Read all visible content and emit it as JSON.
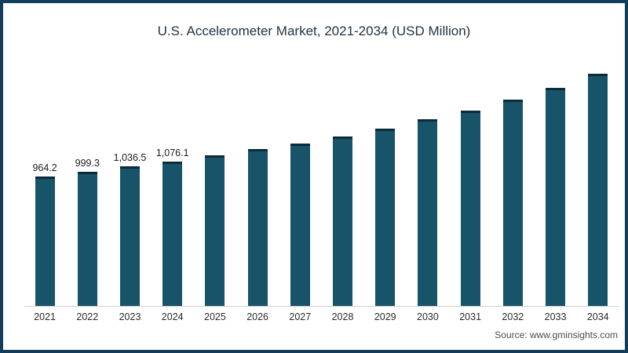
{
  "header": {
    "title": "U.S. Accelerometer Market, 2021-2034 (USD Million)"
  },
  "footer": {
    "source_label": "Source: www.gminsights.com"
  },
  "colors": {
    "frame_border": "#123E5C",
    "bar_fill": "#175369",
    "bar_cap": "#0C2B3B",
    "axis_line": "#cfcfcf",
    "title_text": "#243341",
    "label_text": "#1b1b1b"
  },
  "chart_data": {
    "type": "bar",
    "title": "U.S. Accelerometer Market, 2021-2034 (USD Million)",
    "categories": [
      "2021",
      "2022",
      "2023",
      "2024",
      "2025",
      "2026",
      "2027",
      "2028",
      "2029",
      "2030",
      "2031",
      "2032",
      "2033",
      "2034"
    ],
    "values": [
      964.2,
      999.3,
      1036.5,
      1076.1,
      1120,
      1165,
      1210,
      1262,
      1320,
      1388,
      1452,
      1530,
      1618,
      1724
    ],
    "data_labels": [
      "964.2",
      "999.3",
      "1,036.5",
      "1,076.1",
      "",
      "",
      "",
      "",
      "",
      "",
      "",
      "",
      "",
      ""
    ],
    "xlabel": "",
    "ylabel": "",
    "ylim": [
      0,
      1800
    ],
    "grid": false,
    "legend": false,
    "bar_color": "#175369",
    "bar_cap_color": "#0C2B3B"
  }
}
